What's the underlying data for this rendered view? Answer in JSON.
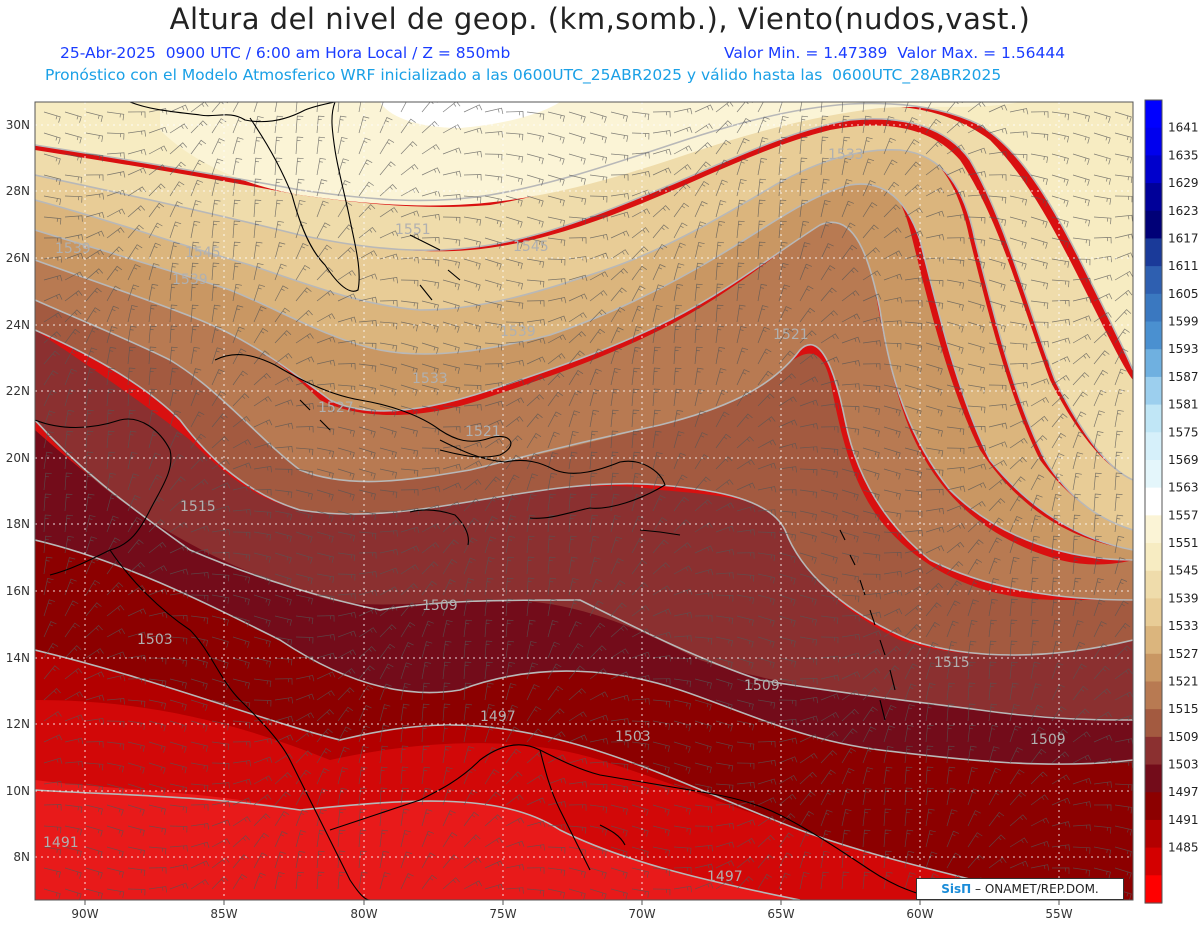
{
  "header": {
    "title": "Altura del nivel de geop. (km,somb.), Viento(nudos,vast.)",
    "date_time": "25-Abr-2025  0900 UTC / 6:00 am Hora Local / Z = 850mb",
    "min_max": "Valor Min. = 1.47389  Valor Max. = 1.56444",
    "model_info": "Pronóstico con el Modelo Atmosferico WRF inicializado a las 0600UTC_25ABR2025 y válido hasta las  0600UTC_28ABR2025"
  },
  "axes": {
    "lon_labels": [
      "90W",
      "85W",
      "80W",
      "75W",
      "70W",
      "65W",
      "60W",
      "55W"
    ],
    "lat_labels": [
      "30N",
      "28N",
      "26N",
      "24N",
      "22N",
      "20N",
      "18N",
      "16N",
      "14N",
      "12N",
      "10N",
      "8N"
    ]
  },
  "colorbar": {
    "labels": [
      "1641",
      "1635",
      "1629",
      "1623",
      "1617",
      "1611",
      "1605",
      "1599",
      "1593",
      "1587",
      "1581",
      "1575",
      "1569",
      "1563",
      "1557",
      "1551",
      "1545",
      "1539",
      "1533",
      "1527",
      "1521",
      "1515",
      "1509",
      "1503",
      "1497",
      "1491",
      "1485"
    ],
    "colors": [
      "#0000ff",
      "#0000ee",
      "#0000cc",
      "#000099",
      "#000077",
      "#1a3a99",
      "#2e5fb0",
      "#3a78c0",
      "#4a90d0",
      "#6fb0e0",
      "#9ccfee",
      "#c0e6f6",
      "#d6f0fa",
      "#e4f6fb",
      "#ffffff",
      "#fbf4d6",
      "#f7ecc2",
      "#efdcab",
      "#e8cc96",
      "#dbb57d",
      "#c99763",
      "#b87a52",
      "#a35a40",
      "#8b3030",
      "#730c1a",
      "#8c0000",
      "#b30000",
      "#d40000",
      "#ff0000"
    ]
  },
  "contour_labels": [
    {
      "text": "1539"
    },
    {
      "text": "1551"
    },
    {
      "text": "1545"
    },
    {
      "text": "1545"
    },
    {
      "text": "1539"
    },
    {
      "text": "1533"
    },
    {
      "text": "1539"
    },
    {
      "text": "1521"
    },
    {
      "text": "1533"
    },
    {
      "text": "1527"
    },
    {
      "text": "1521"
    },
    {
      "text": "1515"
    },
    {
      "text": "1509"
    },
    {
      "text": "1503"
    },
    {
      "text": "1515"
    },
    {
      "text": "1509"
    },
    {
      "text": "1497"
    },
    {
      "text": "1503"
    },
    {
      "text": "1509"
    },
    {
      "text": "1491"
    },
    {
      "text": "1497"
    }
  ],
  "credit": {
    "brand": "SisΠ",
    "org": "ONAMET/REP.DOM."
  }
}
